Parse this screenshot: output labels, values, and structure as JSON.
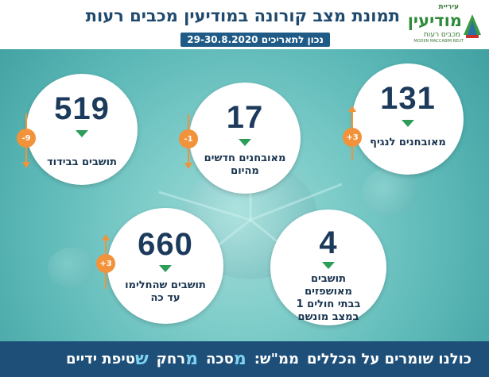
{
  "header": {
    "title": "תמונת מצב קורונה במודיעין מכבים רעות",
    "date": "נכון לתאריכים 29-30.8.2020"
  },
  "logo": {
    "line1": "עיריית",
    "line2": "מודיעין",
    "line3": "מכבים רעות",
    "line4": "MODIIN MACCABIM REUT"
  },
  "stats": {
    "diagnosed_branch": {
      "value": "131",
      "label": "מאובחנים לנגיף",
      "change": "+3"
    },
    "new_today": {
      "value": "17",
      "label": "מאובחנים חדשים מהיום",
      "change": "-1"
    },
    "isolation": {
      "value": "519",
      "label": "תושבים בבידוד",
      "change": "-9"
    },
    "hospitalized": {
      "value": "4",
      "label": "תושבים מאושפזים בבתי חולים 1 במצב מונשם"
    },
    "recovered": {
      "value": "660",
      "label": "תושבים שהחלימו עד כה",
      "change": "+3"
    }
  },
  "colors": {
    "accent_orange": "#f2923a",
    "indicator_green": "#2c9e5a",
    "footer_blue": "#1d4f78",
    "title_blue": "#1f4a6e"
  },
  "footer": {
    "intro": "כולנו שומרים על הכללים",
    "mem": "ממ\"ש:",
    "mask_letter": "מ",
    "mask_rest": "סכה",
    "distance_letter": "מ",
    "distance_rest": "רחק",
    "hygiene_letter": "ש",
    "hygiene_rest": "טיפת ידיים"
  }
}
